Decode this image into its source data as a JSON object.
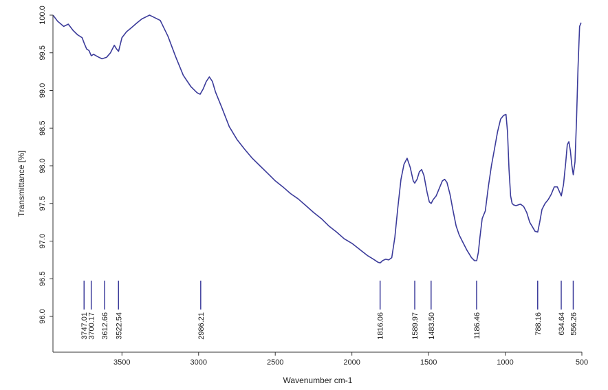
{
  "chart_data": {
    "type": "line",
    "xlabel": "Wavenumber cm-1",
    "ylabel": "Transmittance [%]",
    "xlim": [
      3950,
      500
    ],
    "ylim": [
      95.75,
      100.0
    ],
    "x_reversed": true,
    "grid": false,
    "line_color": "#3b3b9a",
    "x_ticks": [
      3500,
      3000,
      2500,
      2000,
      1500,
      1000,
      500
    ],
    "x_tick_labels": [
      "3500",
      "3000",
      "2500",
      "2000",
      "1500",
      "1000",
      "500"
    ],
    "y_ticks": [
      96.0,
      96.5,
      97.0,
      97.5,
      98.0,
      98.5,
      99.0,
      99.5,
      100.0
    ],
    "y_tick_labels": [
      "96.0",
      "96.5",
      "97.0",
      "97.5",
      "98.0",
      "98.5",
      "99.0",
      "99.5",
      "100.0"
    ],
    "series": [
      {
        "x": [
          3950,
          3920,
          3880,
          3850,
          3820,
          3790,
          3760,
          3745,
          3730,
          3715,
          3700,
          3685,
          3660,
          3630,
          3600,
          3575,
          3550,
          3535,
          3522,
          3500,
          3470,
          3440,
          3400,
          3370,
          3340,
          3320,
          3300,
          3250,
          3200,
          3150,
          3100,
          3050,
          3010,
          2990,
          2970,
          2950,
          2930,
          2910,
          2890,
          2870,
          2850,
          2800,
          2750,
          2700,
          2650,
          2600,
          2550,
          2500,
          2450,
          2400,
          2350,
          2300,
          2250,
          2200,
          2150,
          2100,
          2050,
          2000,
          1950,
          1900,
          1860,
          1830,
          1816,
          1800,
          1780,
          1760,
          1740,
          1720,
          1700,
          1680,
          1660,
          1640,
          1620,
          1600,
          1590,
          1575,
          1560,
          1545,
          1530,
          1510,
          1495,
          1483,
          1470,
          1450,
          1430,
          1410,
          1395,
          1380,
          1360,
          1340,
          1320,
          1300,
          1280,
          1250,
          1220,
          1200,
          1186,
          1175,
          1165,
          1150,
          1130,
          1110,
          1090,
          1070,
          1050,
          1030,
          1010,
          995,
          985,
          975,
          965,
          955,
          945,
          930,
          915,
          900,
          880,
          860,
          840,
          820,
          805,
          788,
          775,
          760,
          740,
          720,
          700,
          680,
          660,
          645,
          634,
          620,
          605,
          595,
          585,
          575,
          565,
          556,
          545,
          535,
          525,
          515,
          505
        ],
        "y": [
          100.0,
          99.92,
          99.85,
          99.88,
          99.8,
          99.74,
          99.7,
          99.62,
          99.55,
          99.53,
          99.46,
          99.48,
          99.45,
          99.42,
          99.44,
          99.5,
          99.6,
          99.55,
          99.52,
          99.7,
          99.78,
          99.83,
          99.9,
          99.95,
          99.98,
          100.0,
          99.98,
          99.93,
          99.72,
          99.45,
          99.2,
          99.05,
          98.97,
          98.95,
          99.02,
          99.12,
          99.18,
          99.12,
          98.98,
          98.88,
          98.78,
          98.52,
          98.35,
          98.22,
          98.1,
          98.0,
          97.9,
          97.8,
          97.72,
          97.63,
          97.56,
          97.47,
          97.38,
          97.3,
          97.2,
          97.12,
          97.03,
          96.97,
          96.89,
          96.81,
          96.76,
          96.72,
          96.71,
          96.74,
          96.76,
          96.75,
          96.78,
          97.05,
          97.45,
          97.82,
          98.02,
          98.1,
          97.98,
          97.8,
          97.77,
          97.82,
          97.92,
          97.95,
          97.87,
          97.65,
          97.52,
          97.5,
          97.55,
          97.6,
          97.7,
          97.8,
          97.82,
          97.78,
          97.62,
          97.4,
          97.2,
          97.08,
          97.0,
          96.88,
          96.78,
          96.74,
          96.74,
          96.85,
          97.05,
          97.3,
          97.4,
          97.72,
          98.0,
          98.22,
          98.45,
          98.62,
          98.67,
          98.68,
          98.45,
          97.95,
          97.6,
          97.5,
          97.48,
          97.47,
          97.48,
          97.49,
          97.46,
          97.38,
          97.25,
          97.18,
          97.13,
          97.12,
          97.25,
          97.42,
          97.5,
          97.55,
          97.62,
          97.72,
          97.72,
          97.65,
          97.6,
          97.75,
          98.05,
          98.28,
          98.32,
          98.2,
          98.0,
          97.88,
          98.05,
          98.6,
          99.3,
          99.85,
          99.9
        ]
      }
    ],
    "peak_labels": [
      {
        "x": 3747.01,
        "label": "3747.01"
      },
      {
        "x": 3700.17,
        "label": "3700.17"
      },
      {
        "x": 3612.66,
        "label": "3612.66"
      },
      {
        "x": 3522.54,
        "label": "3522.54"
      },
      {
        "x": 2986.21,
        "label": "2986.21"
      },
      {
        "x": 1816.06,
        "label": "1816.06"
      },
      {
        "x": 1589.97,
        "label": "1589.97"
      },
      {
        "x": 1483.5,
        "label": "1483.50"
      },
      {
        "x": 1186.46,
        "label": "1186.46"
      },
      {
        "x": 788.16,
        "label": "788.16"
      },
      {
        "x": 634.64,
        "label": "634.64"
      },
      {
        "x": 556.26,
        "label": "556.26"
      }
    ]
  }
}
